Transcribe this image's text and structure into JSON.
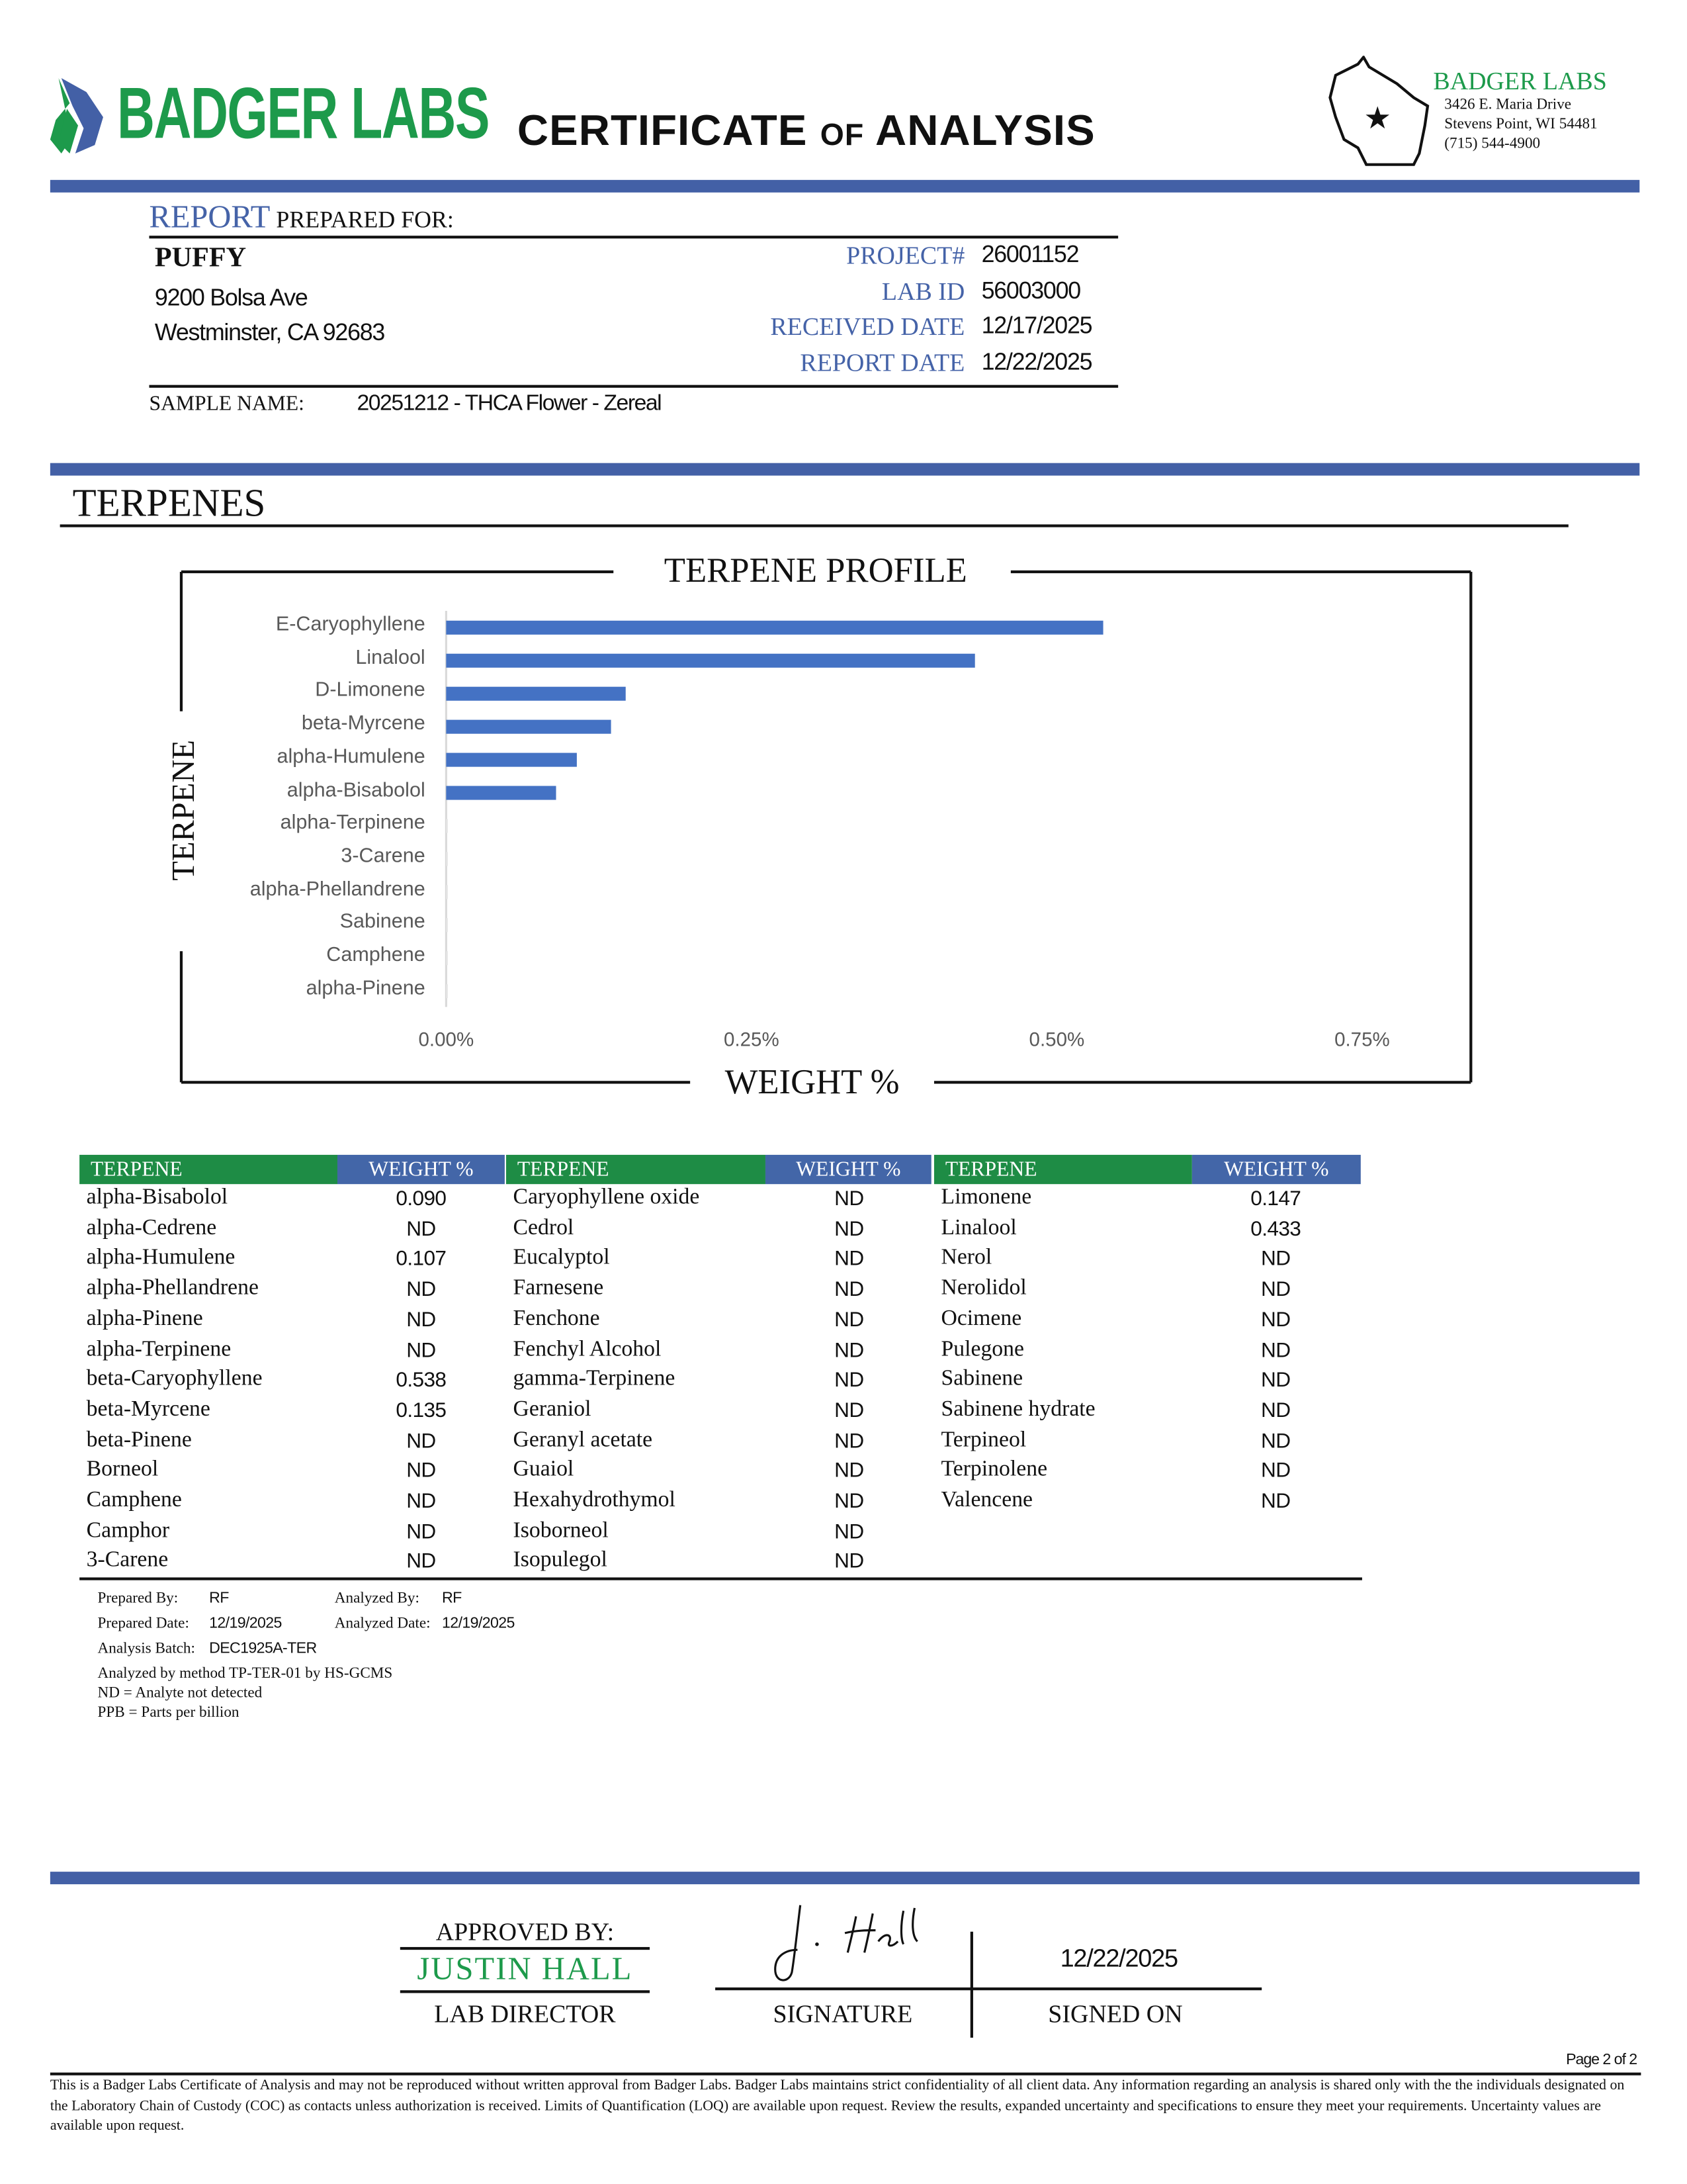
{
  "header": {
    "logo_text": "BADGER LABS",
    "title_part1": "CERTIFICATE",
    "title_part2": "OF",
    "title_part3": "ANALYSIS",
    "lab": {
      "name": "BADGER LABS",
      "address1": "3426 E. Maria Drive",
      "address2": "Stevens Point, WI 54481",
      "phone": "(715) 544-4900"
    }
  },
  "report": {
    "heading_accent": "REPORT",
    "heading_rest": "PREPARED FOR:",
    "client_name": "PUFFY",
    "client_address1": "9200 Bolsa Ave",
    "client_address2": "Westminster, CA 92683",
    "fields": [
      {
        "label": "PROJECT#",
        "value": "26001152"
      },
      {
        "label": "LAB ID",
        "value": "56003000"
      },
      {
        "label": "RECEIVED DATE",
        "value": "12/17/2025"
      },
      {
        "label": "REPORT DATE",
        "value": "12/22/2025"
      }
    ],
    "sample_label": "SAMPLE NAME:",
    "sample_value": "20251212 - THCA Flower - Zereal"
  },
  "section_title": "TERPENES",
  "chart_data": {
    "type": "bar",
    "orientation": "horizontal",
    "title": "TERPENE PROFILE",
    "xlabel": "WEIGHT %",
    "ylabel": "TERPENE",
    "categories": [
      "E-Caryophyllene",
      "Linalool",
      "D-Limonene",
      "beta-Myrcene",
      "alpha-Humulene",
      "alpha-Bisabolol",
      "alpha-Terpinene",
      "3-Carene",
      "alpha-Phellandrene",
      "Sabinene",
      "Camphene",
      "alpha-Pinene"
    ],
    "values": [
      0.538,
      0.433,
      0.147,
      0.135,
      0.107,
      0.09,
      0,
      0,
      0,
      0,
      0,
      0
    ],
    "xlim": [
      0,
      0.75
    ],
    "xticks": [
      "0.00%",
      "0.25%",
      "0.50%",
      "0.75%"
    ],
    "xtick_values": [
      0,
      0.25,
      0.5,
      0.75
    ],
    "grid": false,
    "bar_color": "#4472c4"
  },
  "table": {
    "header_terpene": "TERPENE",
    "header_weight": "WEIGHT %",
    "columns": [
      [
        [
          "alpha-Bisabolol",
          "0.090"
        ],
        [
          "alpha-Cedrene",
          "ND"
        ],
        [
          "alpha-Humulene",
          "0.107"
        ],
        [
          "alpha-Phellandrene",
          "ND"
        ],
        [
          "alpha-Pinene",
          "ND"
        ],
        [
          "alpha-Terpinene",
          "ND"
        ],
        [
          "beta-Caryophyllene",
          "0.538"
        ],
        [
          "beta-Myrcene",
          "0.135"
        ],
        [
          "beta-Pinene",
          "ND"
        ],
        [
          "Borneol",
          "ND"
        ],
        [
          "Camphene",
          "ND"
        ],
        [
          "Camphor",
          "ND"
        ],
        [
          "3-Carene",
          "ND"
        ]
      ],
      [
        [
          "Caryophyllene oxide",
          "ND"
        ],
        [
          "Cedrol",
          "ND"
        ],
        [
          "Eucalyptol",
          "ND"
        ],
        [
          "Farnesene",
          "ND"
        ],
        [
          "Fenchone",
          "ND"
        ],
        [
          "Fenchyl Alcohol",
          "ND"
        ],
        [
          "gamma-Terpinene",
          "ND"
        ],
        [
          "Geraniol",
          "ND"
        ],
        [
          "Geranyl acetate",
          "ND"
        ],
        [
          "Guaiol",
          "ND"
        ],
        [
          "Hexahydrothymol",
          "ND"
        ],
        [
          "Isoborneol",
          "ND"
        ],
        [
          "Isopulegol",
          "ND"
        ]
      ],
      [
        [
          "Limonene",
          "0.147"
        ],
        [
          "Linalool",
          "0.433"
        ],
        [
          "Nerol",
          "ND"
        ],
        [
          "Nerolidol",
          "ND"
        ],
        [
          "Ocimene",
          "ND"
        ],
        [
          "Pulegone",
          "ND"
        ],
        [
          "Sabinene",
          "ND"
        ],
        [
          "Sabinene hydrate",
          "ND"
        ],
        [
          "Terpineol",
          "ND"
        ],
        [
          "Terpinolene",
          "ND"
        ],
        [
          "Valencene",
          "ND"
        ]
      ]
    ],
    "header_green": "#1e8c45",
    "header_blue": "#4366a8"
  },
  "meta": {
    "prepared_by_label": "Prepared By:",
    "prepared_by": "RF",
    "analyzed_by_label": "Analyzed By:",
    "analyzed_by": "RF",
    "prepared_date_label": "Prepared Date:",
    "prepared_date": "12/19/2025",
    "analyzed_date_label": "Analyzed Date:",
    "analyzed_date": "12/19/2025",
    "batch_label": "Analysis Batch:",
    "batch": "DEC1925A-TER",
    "note1": "Analyzed by method TP-TER-01 by HS-GCMS",
    "note2": "ND = Analyte not detected",
    "note3": "PPB = Parts per billion"
  },
  "approval": {
    "approved_by_label": "APPROVED BY:",
    "approver": "JUSTIN HALL",
    "approver_title": "LAB DIRECTOR",
    "signature_label": "SIGNATURE",
    "signed_on_label": "SIGNED ON",
    "signed_date": "12/22/2025",
    "signature_text": "J. Hall"
  },
  "footer": {
    "page": "Page 2 of 2",
    "disclaimer": "This is a Badger Labs Certificate of Analysis and may not be reproduced without written approval from Badger Labs. Badger Labs maintains strict confidentiality of all client data. Any information regarding an analysis is shared only with the the individuals designated on the Laboratory Chain of Custody (COC) as contacts unless authorization is received. Limits of Quantification (LOQ) are available upon request. Review the results, expanded uncertainty and specifications to ensure they meet your requirements. Uncertainty values are available upon request."
  },
  "colors": {
    "brand_blue": "#4360a6",
    "brand_green": "#1d9a4b"
  }
}
